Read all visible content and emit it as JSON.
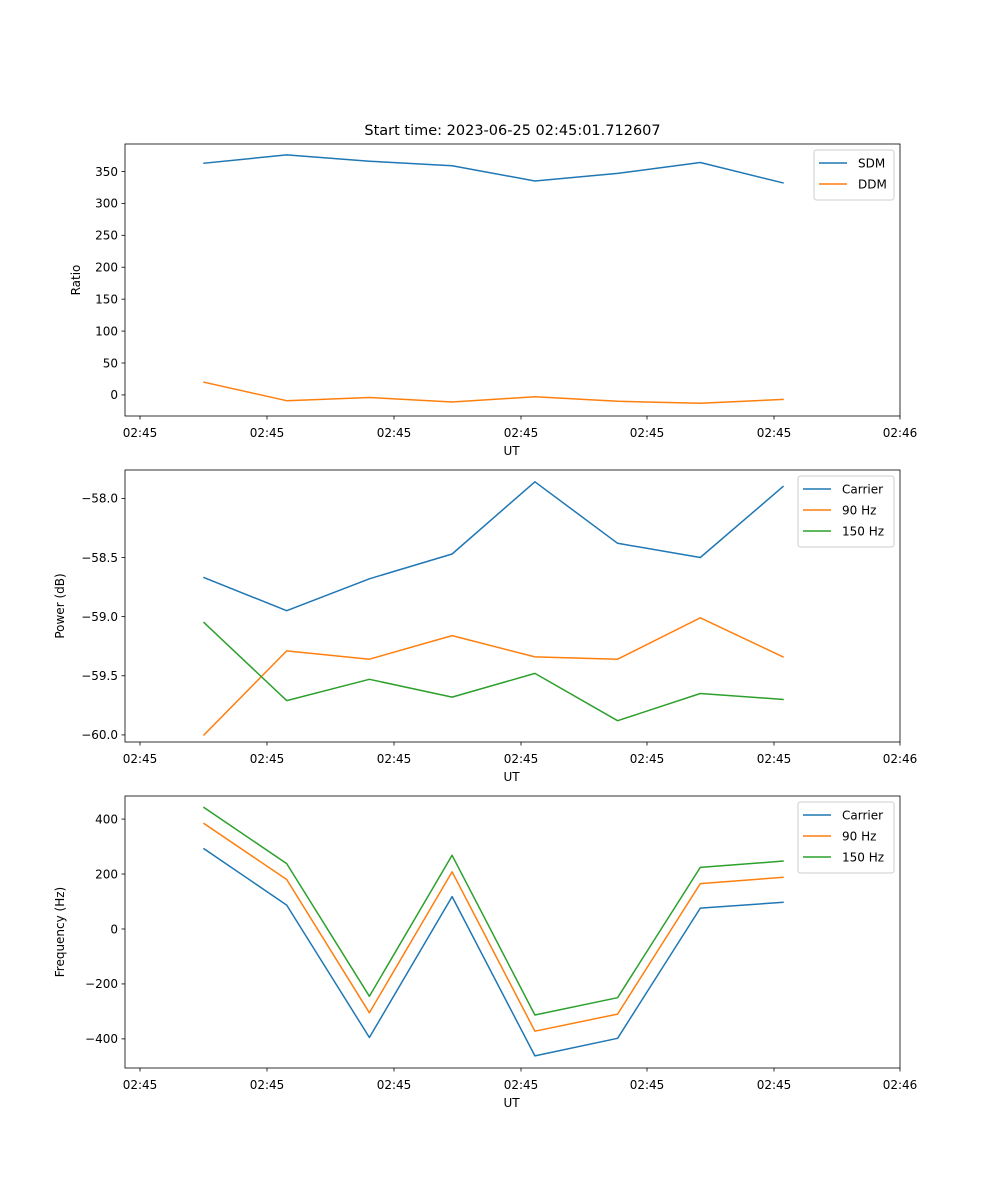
{
  "chart_data": [
    {
      "type": "line",
      "title": "Start time: 2023-06-25 02:45:01.712607",
      "xlabel": "UT",
      "ylabel": "Ratio",
      "x_tick_labels": [
        "02:45",
        "02:45",
        "02:45",
        "02:45",
        "02:45",
        "02:45",
        "02:46"
      ],
      "y_ticks": [
        0,
        50,
        100,
        150,
        200,
        250,
        300,
        350
      ],
      "y_tick_labels": [
        "0",
        "50",
        "100",
        "150",
        "200",
        "250",
        "300",
        "350"
      ],
      "ylim": [
        -33,
        393
      ],
      "legend_position": "top-right",
      "x_points": [
        1,
        2,
        3,
        4,
        5,
        6,
        7,
        8
      ],
      "series": [
        {
          "name": "SDM",
          "color": "#1f77b4",
          "values": [
            363,
            376,
            366,
            359,
            335,
            347,
            364,
            332
          ]
        },
        {
          "name": "DDM",
          "color": "#ff7f0e",
          "values": [
            20,
            -9,
            -4,
            -11,
            -3,
            -10,
            -13,
            -7
          ]
        }
      ]
    },
    {
      "type": "line",
      "title": "",
      "xlabel": "UT",
      "ylabel": "Power (dB)",
      "x_tick_labels": [
        "02:45",
        "02:45",
        "02:45",
        "02:45",
        "02:45",
        "02:45",
        "02:46"
      ],
      "y_ticks": [
        -60.0,
        -59.5,
        -59.0,
        -58.5,
        -58.0
      ],
      "y_tick_labels": [
        "−60.0",
        "−59.5",
        "−59.0",
        "−58.5",
        "−58.0"
      ],
      "ylim": [
        -60.06,
        -57.76
      ],
      "legend_position": "top-right",
      "x_points": [
        1,
        2,
        3,
        4,
        5,
        6,
        7,
        8
      ],
      "series": [
        {
          "name": "Carrier",
          "color": "#1f77b4",
          "values": [
            -58.67,
            -58.95,
            -58.68,
            -58.47,
            -57.86,
            -58.38,
            -58.5,
            -57.9
          ]
        },
        {
          "name": "90 Hz",
          "color": "#ff7f0e",
          "values": [
            -60.0,
            -59.29,
            -59.36,
            -59.16,
            -59.34,
            -59.36,
            -59.01,
            -59.34
          ]
        },
        {
          "name": "150 Hz",
          "color": "#2ca02c",
          "values": [
            -59.05,
            -59.71,
            -59.53,
            -59.68,
            -59.48,
            -59.88,
            -59.65,
            -59.7
          ]
        }
      ]
    },
    {
      "type": "line",
      "title": "",
      "xlabel": "UT",
      "ylabel": "Frequency (Hz)",
      "x_tick_labels": [
        "02:45",
        "02:45",
        "02:45",
        "02:45",
        "02:45",
        "02:45",
        "02:46"
      ],
      "y_ticks": [
        -400,
        -200,
        0,
        200,
        400
      ],
      "y_tick_labels": [
        "−400",
        "−200",
        "0",
        "200",
        "400"
      ],
      "ylim": [
        -506,
        484
      ],
      "legend_position": "top-right",
      "x_points": [
        1,
        2,
        3,
        4,
        5,
        6,
        7,
        8
      ],
      "series": [
        {
          "name": "Carrier",
          "color": "#1f77b4",
          "values": [
            292,
            87,
            -395,
            118,
            -462,
            -398,
            76,
            97
          ]
        },
        {
          "name": "90 Hz",
          "color": "#ff7f0e",
          "values": [
            384,
            180,
            -305,
            208,
            -372,
            -310,
            165,
            188
          ]
        },
        {
          "name": "150 Hz",
          "color": "#2ca02c",
          "values": [
            442,
            238,
            -245,
            268,
            -313,
            -250,
            224,
            247
          ]
        }
      ]
    }
  ]
}
